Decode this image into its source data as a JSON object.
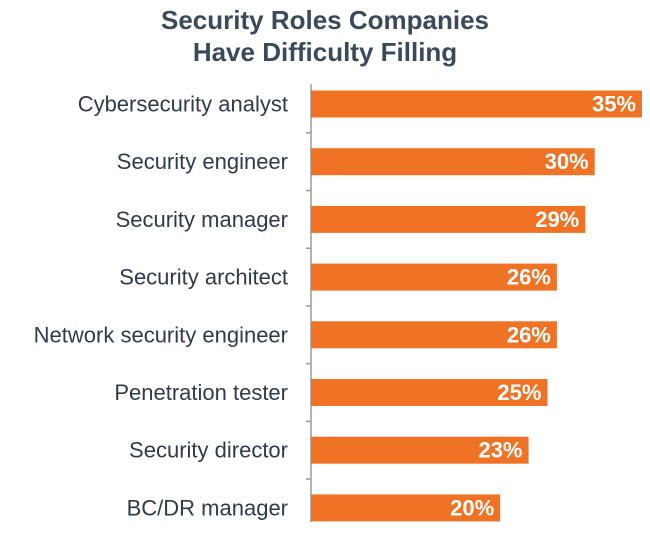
{
  "chart_data": {
    "type": "bar",
    "orientation": "horizontal",
    "title_line1": "Security Roles Companies",
    "title_line2": "Have Difficulty Filling",
    "categories": [
      "Cybersecurity analyst",
      "Security engineer",
      "Security manager",
      "Security architect",
      "Network security engineer",
      "Penetration tester",
      "Security director",
      "BC/DR manager"
    ],
    "values": [
      35,
      30,
      29,
      26,
      26,
      25,
      23,
      20
    ],
    "value_labels": [
      "35%",
      "30%",
      "29%",
      "26%",
      "26%",
      "25%",
      "23%",
      "20%"
    ],
    "xlim": [
      0,
      35
    ],
    "grid": false,
    "bar_color": "#f07225",
    "axis_color": "#9a9a9a"
  }
}
